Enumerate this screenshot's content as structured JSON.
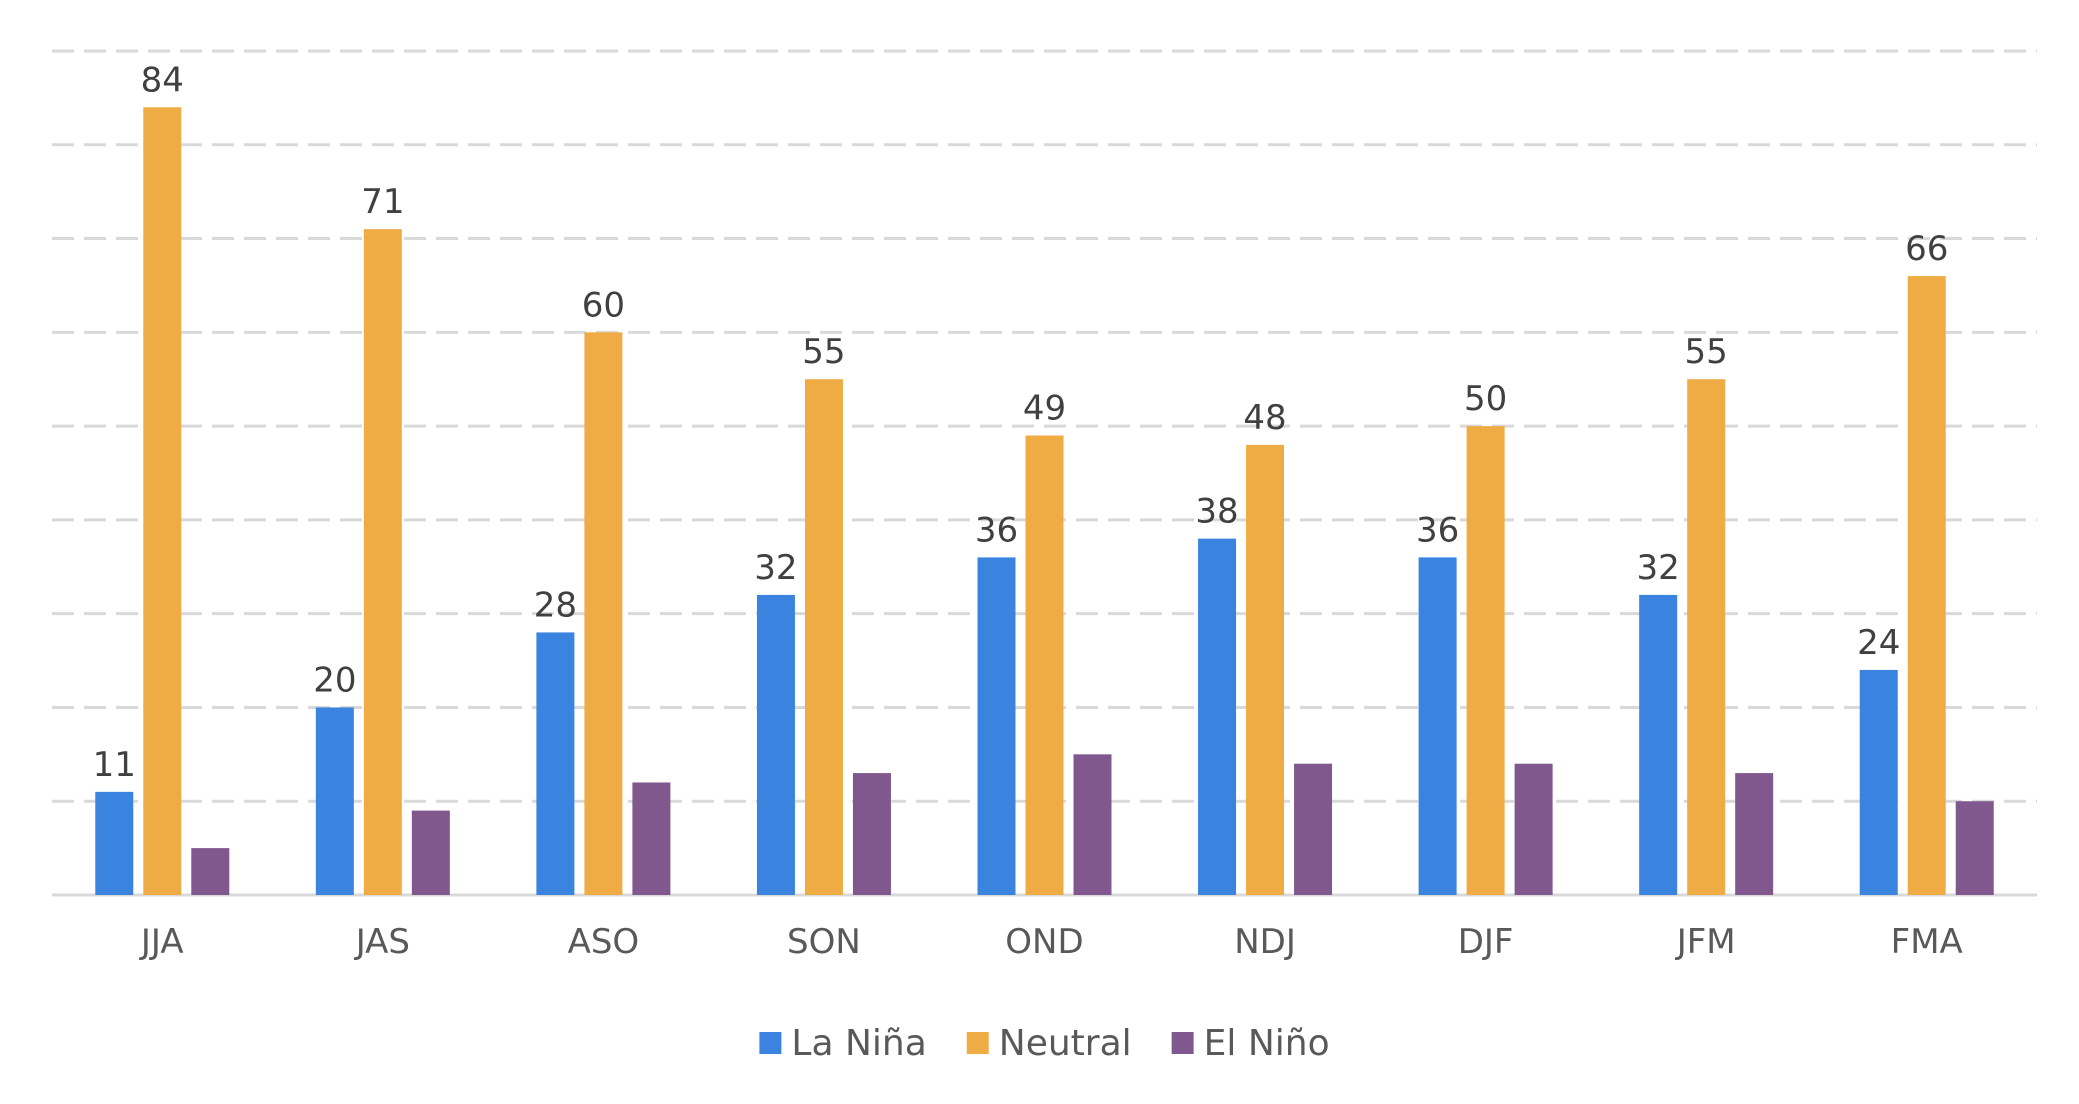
{
  "chart_data": {
    "type": "bar",
    "categories": [
      "JJA",
      "JAS",
      "ASO",
      "SON",
      "OND",
      "NDJ",
      "DJF",
      "JFM",
      "FMA"
    ],
    "series": [
      {
        "name": "La Niña",
        "color": "#3A84DF",
        "values": [
          11,
          20,
          28,
          32,
          36,
          38,
          36,
          32,
          24
        ],
        "labels": [
          "11",
          "20",
          "28",
          "32",
          "36",
          "38",
          "36",
          "32",
          "24"
        ]
      },
      {
        "name": "Neutral",
        "color": "#EFAC45",
        "values": [
          84,
          71,
          60,
          55,
          49,
          48,
          50,
          55,
          66
        ],
        "labels": [
          "84",
          "71",
          "60",
          "55",
          "49",
          "48",
          "50",
          "55",
          "66"
        ]
      },
      {
        "name": "El Niño",
        "color": "#80588E",
        "values": [
          5,
          9,
          12,
          13,
          15,
          14,
          14,
          13,
          10
        ],
        "labels": [
          "",
          "",
          "",
          "",
          "",
          "",
          "",
          "",
          ""
        ]
      }
    ],
    "ylim": [
      0,
      90
    ],
    "grid": true,
    "legend": "bottom",
    "title": "",
    "xlabel": "",
    "ylabel": ""
  }
}
